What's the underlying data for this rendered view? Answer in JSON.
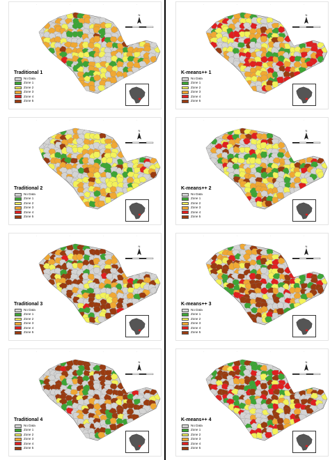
{
  "colors": {
    "no_data": "#d4d4d4",
    "zone1": "#3da535",
    "zone2": "#f3f25a",
    "zone3": "#f0a833",
    "zone4": "#e01f1f",
    "zone5": "#9a3b10",
    "outline": "#6b6b6b",
    "brazil": "#555555"
  },
  "legend": {
    "items": [
      "No Data",
      "Zone 1",
      "Zone 2",
      "Zone 3",
      "Zone 4",
      "Zone 5"
    ]
  },
  "icons": {
    "north_arrow": "north-arrow-icon",
    "scale_bar": "scale-bar-icon",
    "locator": "brazil-locator-icon"
  },
  "panels": [
    {
      "title": "Traditional 1",
      "dist": [
        0.28,
        0.14,
        0.14,
        0.4,
        0.01,
        0.03
      ]
    },
    {
      "title": "K-means++ 1",
      "dist": [
        0.26,
        0.12,
        0.14,
        0.3,
        0.14,
        0.04
      ]
    },
    {
      "title": "Traditional 2",
      "dist": [
        0.28,
        0.12,
        0.22,
        0.26,
        0.02,
        0.1
      ]
    },
    {
      "title": "K-means++ 2",
      "dist": [
        0.28,
        0.14,
        0.22,
        0.22,
        0.06,
        0.08
      ]
    },
    {
      "title": "Traditional 3",
      "dist": [
        0.26,
        0.14,
        0.14,
        0.18,
        0.02,
        0.26
      ]
    },
    {
      "title": "K-means++ 3",
      "dist": [
        0.26,
        0.12,
        0.12,
        0.18,
        0.1,
        0.22
      ]
    },
    {
      "title": "Traditional 4",
      "dist": [
        0.26,
        0.12,
        0.06,
        0.1,
        0.02,
        0.44
      ]
    },
    {
      "title": "K-means++ 4",
      "dist": [
        0.26,
        0.12,
        0.12,
        0.1,
        0.16,
        0.24
      ]
    }
  ]
}
